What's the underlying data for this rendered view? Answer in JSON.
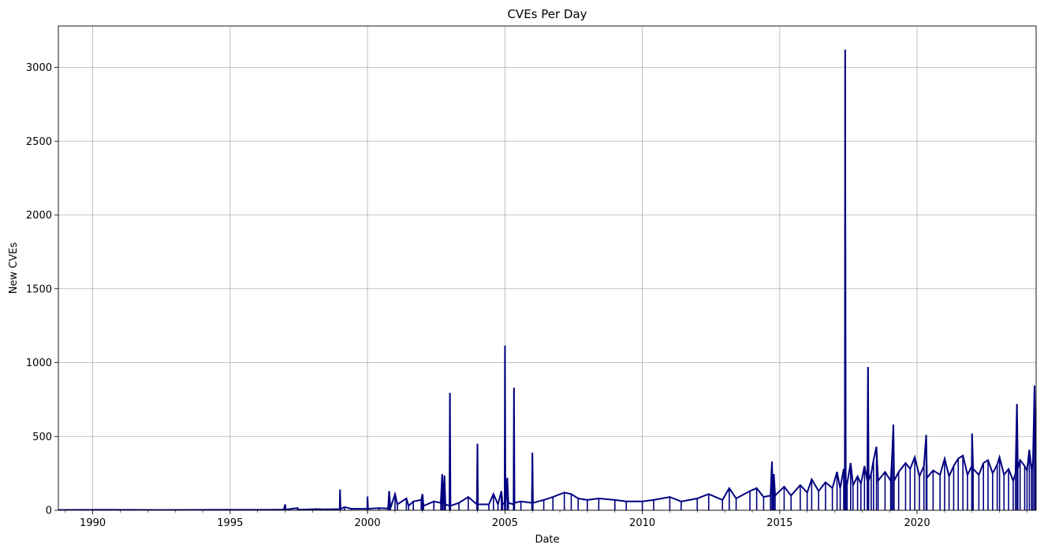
{
  "chart_data": {
    "type": "line",
    "title": "CVEs Per Day",
    "xlabel": "Date",
    "ylabel": "New CVEs",
    "xlim": [
      "1988-10-01",
      "2024-05-01"
    ],
    "ylim": [
      0,
      3280
    ],
    "grid": true,
    "line_color": "#000080",
    "x_ticks": [
      {
        "date": "1990-01-01",
        "label": "1990"
      },
      {
        "date": "1995-01-01",
        "label": "1995"
      },
      {
        "date": "2000-01-01",
        "label": "2000"
      },
      {
        "date": "2005-01-01",
        "label": "2005"
      },
      {
        "date": "2010-01-01",
        "label": "2010"
      },
      {
        "date": "2015-01-01",
        "label": "2015"
      },
      {
        "date": "2020-01-01",
        "label": "2020"
      }
    ],
    "y_ticks": [
      {
        "value": 0,
        "label": "0"
      },
      {
        "value": 500,
        "label": "500"
      },
      {
        "value": 1000,
        "label": "1000"
      },
      {
        "value": 1500,
        "label": "1500"
      },
      {
        "value": 2000,
        "label": "2000"
      },
      {
        "value": 2500,
        "label": "2500"
      },
      {
        "value": 3000,
        "label": "3000"
      }
    ],
    "series": [
      {
        "points": [
          [
            "1988-10-01",
            2
          ],
          [
            "1990-06-01",
            3
          ],
          [
            "1992-06-01",
            2
          ],
          [
            "1994-06-01",
            3
          ],
          [
            "1996-06-01",
            3
          ],
          [
            "1996-12-15",
            5
          ],
          [
            "1997-01-01",
            40
          ],
          [
            "1997-01-10",
            5
          ],
          [
            "1997-06-15",
            15
          ],
          [
            "1997-07-01",
            4
          ],
          [
            "1998-03-01",
            8
          ],
          [
            "1998-06-01",
            6
          ],
          [
            "1998-12-28",
            8
          ],
          [
            "1999-01-01",
            140
          ],
          [
            "1999-01-08",
            8
          ],
          [
            "1999-03-01",
            22
          ],
          [
            "1999-06-01",
            10
          ],
          [
            "1999-12-28",
            10
          ],
          [
            "2000-01-01",
            93
          ],
          [
            "2000-01-08",
            10
          ],
          [
            "2000-06-01",
            15
          ],
          [
            "2000-10-01",
            12
          ],
          [
            "2000-10-15",
            130
          ],
          [
            "2000-11-01",
            15
          ],
          [
            "2001-01-01",
            110
          ],
          [
            "2001-02-01",
            40
          ],
          [
            "2001-06-01",
            80
          ],
          [
            "2001-07-01",
            30
          ],
          [
            "2001-09-01",
            60
          ],
          [
            "2001-12-15",
            70
          ],
          [
            "2002-01-01",
            110
          ],
          [
            "2002-01-15",
            30
          ],
          [
            "2002-06-01",
            60
          ],
          [
            "2002-09-01",
            50
          ],
          [
            "2002-09-20",
            245
          ],
          [
            "2002-10-01",
            40
          ],
          [
            "2002-10-20",
            235
          ],
          [
            "2002-11-01",
            40
          ],
          [
            "2002-12-25",
            30
          ],
          [
            "2003-01-01",
            795
          ],
          [
            "2003-01-08",
            30
          ],
          [
            "2003-05-01",
            50
          ],
          [
            "2003-09-01",
            90
          ],
          [
            "2003-12-25",
            40
          ],
          [
            "2004-01-01",
            450
          ],
          [
            "2004-01-08",
            40
          ],
          [
            "2004-06-01",
            40
          ],
          [
            "2004-08-01",
            110
          ],
          [
            "2004-10-01",
            40
          ],
          [
            "2004-11-15",
            130
          ],
          [
            "2004-12-01",
            40
          ],
          [
            "2004-12-28",
            50
          ],
          [
            "2005-01-01",
            1115
          ],
          [
            "2005-01-08",
            50
          ],
          [
            "2005-02-01",
            220
          ],
          [
            "2005-02-15",
            50
          ],
          [
            "2005-04-25",
            40
          ],
          [
            "2005-05-01",
            830
          ],
          [
            "2005-05-08",
            50
          ],
          [
            "2005-08-01",
            60
          ],
          [
            "2005-12-25",
            50
          ],
          [
            "2006-01-01",
            390
          ],
          [
            "2006-01-08",
            50
          ],
          [
            "2006-06-01",
            70
          ],
          [
            "2006-10-01",
            90
          ],
          [
            "2007-03-01",
            120
          ],
          [
            "2007-06-01",
            110
          ],
          [
            "2007-09-01",
            80
          ],
          [
            "2008-01-01",
            70
          ],
          [
            "2008-06-01",
            80
          ],
          [
            "2009-01-01",
            70
          ],
          [
            "2009-06-01",
            60
          ],
          [
            "2010-01-01",
            60
          ],
          [
            "2010-06-01",
            70
          ],
          [
            "2011-01-01",
            90
          ],
          [
            "2011-06-01",
            60
          ],
          [
            "2012-01-01",
            80
          ],
          [
            "2012-06-01",
            110
          ],
          [
            "2012-12-01",
            70
          ],
          [
            "2013-03-01",
            150
          ],
          [
            "2013-06-01",
            80
          ],
          [
            "2013-12-01",
            130
          ],
          [
            "2014-03-01",
            150
          ],
          [
            "2014-06-01",
            90
          ],
          [
            "2014-09-01",
            100
          ],
          [
            "2014-09-20",
            330
          ],
          [
            "2014-10-01",
            90
          ],
          [
            "2014-10-15",
            245
          ],
          [
            "2014-11-01",
            100
          ],
          [
            "2015-03-01",
            160
          ],
          [
            "2015-06-01",
            100
          ],
          [
            "2015-10-01",
            170
          ],
          [
            "2016-01-01",
            120
          ],
          [
            "2016-03-01",
            210
          ],
          [
            "2016-06-01",
            130
          ],
          [
            "2016-09-01",
            190
          ],
          [
            "2016-12-01",
            150
          ],
          [
            "2017-02-01",
            260
          ],
          [
            "2017-03-15",
            150
          ],
          [
            "2017-05-01",
            280
          ],
          [
            "2017-05-15",
            200
          ],
          [
            "2017-05-20",
            3120
          ],
          [
            "2017-05-28",
            200
          ],
          [
            "2017-06-15",
            180
          ],
          [
            "2017-08-01",
            320
          ],
          [
            "2017-09-01",
            170
          ],
          [
            "2017-11-01",
            230
          ],
          [
            "2017-12-15",
            180
          ],
          [
            "2018-02-01",
            300
          ],
          [
            "2018-03-10",
            200
          ],
          [
            "2018-03-20",
            970
          ],
          [
            "2018-03-28",
            200
          ],
          [
            "2018-05-01",
            250
          ],
          [
            "2018-06-01",
            340
          ],
          [
            "2018-07-10",
            430
          ],
          [
            "2018-08-01",
            200
          ],
          [
            "2018-11-01",
            260
          ],
          [
            "2019-01-15",
            200
          ],
          [
            "2019-02-01",
            350
          ],
          [
            "2019-02-20",
            580
          ],
          [
            "2019-03-01",
            200
          ],
          [
            "2019-05-01",
            260
          ],
          [
            "2019-08-01",
            320
          ],
          [
            "2019-10-01",
            280
          ],
          [
            "2019-12-01",
            360
          ],
          [
            "2020-02-01",
            230
          ],
          [
            "2020-04-01",
            300
          ],
          [
            "2020-05-01",
            510
          ],
          [
            "2020-05-10",
            220
          ],
          [
            "2020-08-01",
            270
          ],
          [
            "2020-11-01",
            240
          ],
          [
            "2021-01-01",
            350
          ],
          [
            "2021-03-01",
            230
          ],
          [
            "2021-05-01",
            300
          ],
          [
            "2021-07-01",
            350
          ],
          [
            "2021-09-01",
            370
          ],
          [
            "2021-11-01",
            240
          ],
          [
            "2021-12-28",
            300
          ],
          [
            "2022-01-01",
            520
          ],
          [
            "2022-01-15",
            280
          ],
          [
            "2022-04-01",
            240
          ],
          [
            "2022-06-01",
            320
          ],
          [
            "2022-08-01",
            340
          ],
          [
            "2022-10-01",
            250
          ],
          [
            "2022-12-01",
            310
          ],
          [
            "2023-01-01",
            360
          ],
          [
            "2023-03-01",
            240
          ],
          [
            "2023-05-01",
            280
          ],
          [
            "2023-07-01",
            200
          ],
          [
            "2023-08-01",
            250
          ],
          [
            "2023-08-20",
            720
          ],
          [
            "2023-09-01",
            280
          ],
          [
            "2023-10-01",
            340
          ],
          [
            "2023-12-01",
            300
          ],
          [
            "2024-01-01",
            270
          ],
          [
            "2024-02-01",
            410
          ],
          [
            "2024-03-01",
            280
          ],
          [
            "2024-03-20",
            320
          ],
          [
            "2024-04-10",
            845
          ],
          [
            "2024-04-25",
            290
          ]
        ]
      }
    ]
  }
}
